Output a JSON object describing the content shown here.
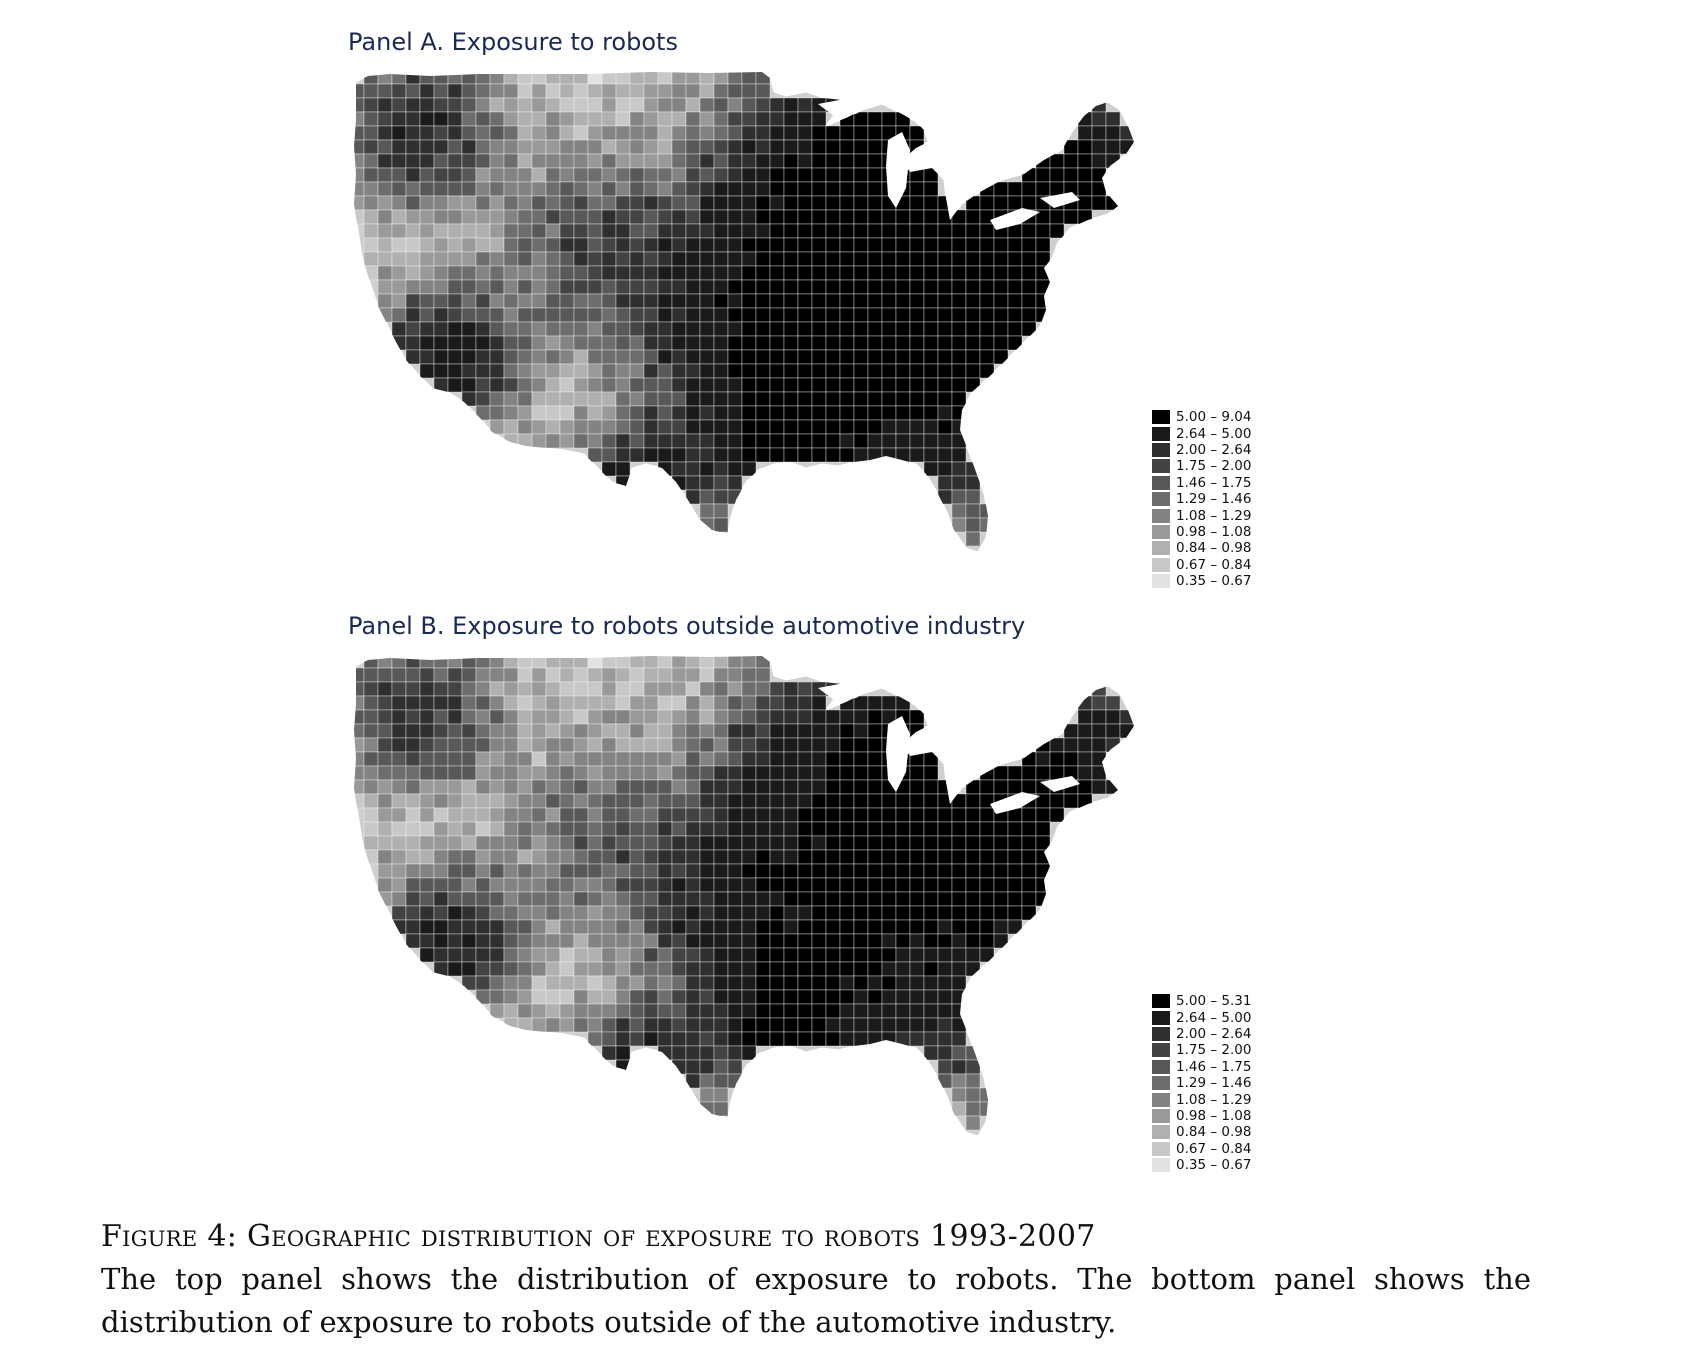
{
  "panels": [
    {
      "title": "Panel A. Exposure to robots",
      "legend": [
        {
          "label": "5.00 – 9.04",
          "color": "#000000"
        },
        {
          "label": "2.64 – 5.00",
          "color": "#1a1a1a"
        },
        {
          "label": "2.00 – 2.64",
          "color": "#2f2f2f"
        },
        {
          "label": "1.75 – 2.00",
          "color": "#434343"
        },
        {
          "label": "1.46 – 1.75",
          "color": "#585858"
        },
        {
          "label": "1.29 – 1.46",
          "color": "#6d6d6d"
        },
        {
          "label": "1.08 – 1.29",
          "color": "#838383"
        },
        {
          "label": "0.98 – 1.08",
          "color": "#999999"
        },
        {
          "label": "0.84 – 0.98",
          "color": "#b0b0b0"
        },
        {
          "label": "0.67 – 0.84",
          "color": "#c8c8c8"
        },
        {
          "label": "0.35 – 0.67",
          "color": "#e2e2e2"
        }
      ]
    },
    {
      "title": "Panel B. Exposure to robots outside automotive industry",
      "legend": [
        {
          "label": "5.00 – 5.31",
          "color": "#000000"
        },
        {
          "label": "2.64 – 5.00",
          "color": "#1a1a1a"
        },
        {
          "label": "2.00 – 2.64",
          "color": "#2f2f2f"
        },
        {
          "label": "1.75 – 2.00",
          "color": "#434343"
        },
        {
          "label": "1.46 – 1.75",
          "color": "#585858"
        },
        {
          "label": "1.29 – 1.46",
          "color": "#6d6d6d"
        },
        {
          "label": "1.08 – 1.29",
          "color": "#838383"
        },
        {
          "label": "0.98 – 1.08",
          "color": "#999999"
        },
        {
          "label": "0.84 – 0.98",
          "color": "#b0b0b0"
        },
        {
          "label": "0.67 – 0.84",
          "color": "#c8c8c8"
        },
        {
          "label": "0.35 – 0.67",
          "color": "#e2e2e2"
        }
      ]
    }
  ],
  "caption": {
    "title": "Figure 4: Geographic distribution of exposure to robots 1993-2007",
    "body": "The top panel shows the distribution of exposure to robots.  The bottom panel shows the distribution of exposure to robots outside of the automotive industry."
  }
}
